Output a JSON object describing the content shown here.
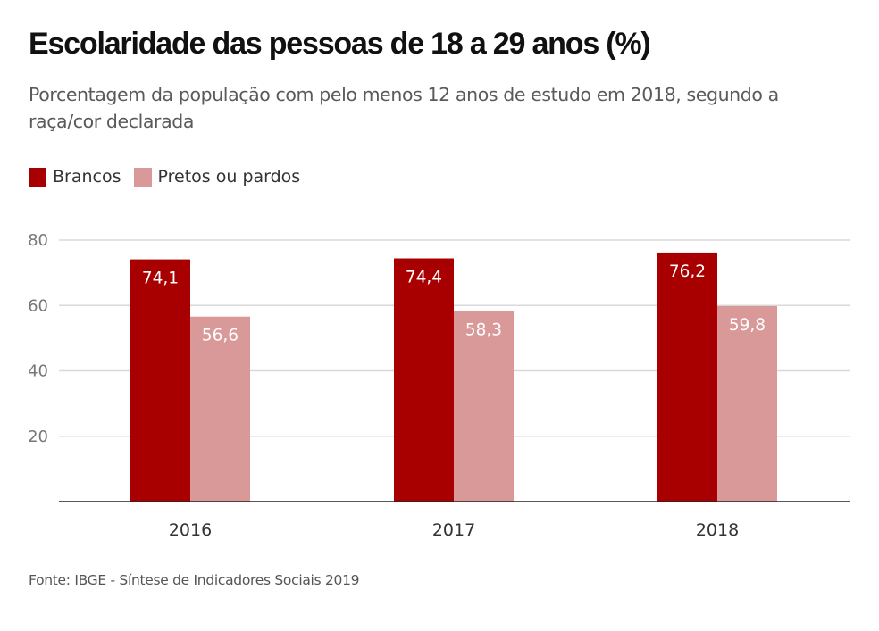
{
  "title": "Escolaridade das pessoas de 18 a 29 anos (%)",
  "subtitle": "Porcentagem da população com pelo menos 12 anos de estudo em 2018, segundo a raça/cor declarada",
  "source": "Fonte: IBGE - Síntese de Indicadores Sociais 2019",
  "legend": [
    {
      "label": "Brancos",
      "color": "#a80000"
    },
    {
      "label": "Pretos ou pardos",
      "color": "#da9999"
    }
  ],
  "chart_data": {
    "type": "bar",
    "title": "Escolaridade das pessoas de 18 a 29 anos (%)",
    "subtitle": "Porcentagem da população com pelo menos 12 anos de estudo em 2018, segundo a raça/cor declarada",
    "xlabel": "",
    "ylabel": "",
    "categories": [
      "2016",
      "2017",
      "2018"
    ],
    "series": [
      {
        "name": "Brancos",
        "color": "#a80000",
        "values": [
          74.1,
          74.4,
          76.2
        ],
        "labels": [
          "74,1",
          "74,4",
          "76,2"
        ]
      },
      {
        "name": "Pretos ou pardos",
        "color": "#da9999",
        "values": [
          56.6,
          58.3,
          59.8
        ],
        "labels": [
          "56,6",
          "58,3",
          "59,8"
        ]
      }
    ],
    "ylim": [
      0,
      80
    ],
    "yticks": [
      20,
      40,
      60,
      80
    ],
    "ytick_labels": [
      "20",
      "40",
      "60",
      "80"
    ],
    "grid": true,
    "legend_position": "top-left",
    "source": "Fonte: IBGE - Síntese de Indicadores Sociais 2019"
  }
}
